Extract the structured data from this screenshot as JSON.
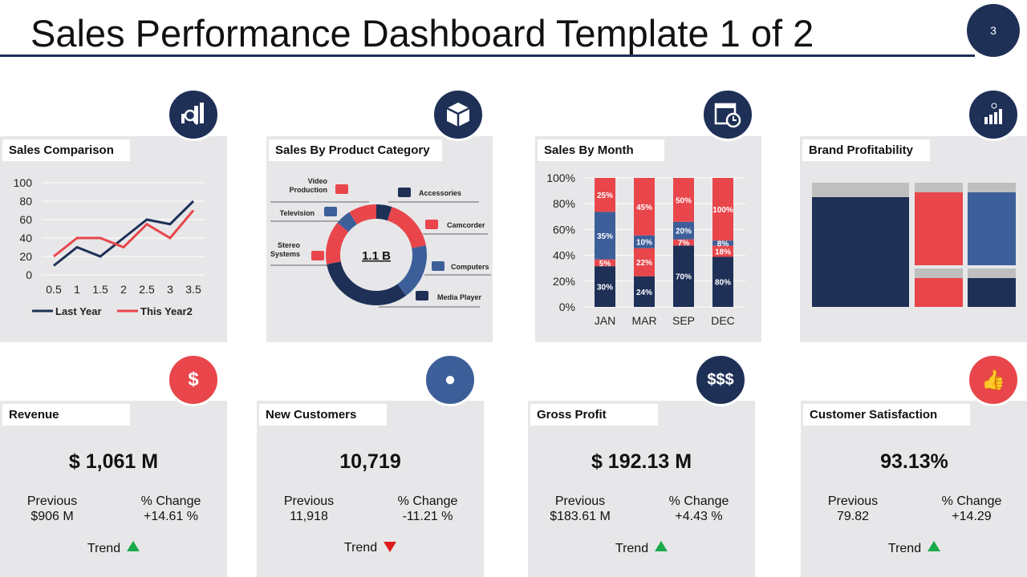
{
  "header": {
    "title": "Sales Performance Dashboard Template 1 of 2",
    "page_number": "3"
  },
  "colors": {
    "navy": "#1f3057",
    "red": "#e8464b",
    "blue": "#3d5f99",
    "panel": "#e7e7e9",
    "gray": "#bfbfbf",
    "up": "#1aaa4a",
    "down": "#e01b1b"
  },
  "panels": {
    "sales_comparison": {
      "title": "Sales Comparison",
      "icon": "chart-search-icon"
    },
    "product_category": {
      "title": "Sales By Product Category",
      "icon": "box-icon"
    },
    "sales_by_month": {
      "title": "Sales By Month",
      "icon": "calendar-clock-icon"
    },
    "brand_profitability": {
      "title": "Brand Profitability",
      "icon": "growth-tag-icon"
    }
  },
  "chart_data": [
    {
      "type": "line",
      "x": [
        0.5,
        1,
        1.5,
        2,
        2.5,
        3,
        3.5
      ],
      "x_ticks": [
        "0.5",
        "1",
        "1.5",
        "2",
        "2.5",
        "3",
        "3.5"
      ],
      "y_ticks": [
        "0",
        "20",
        "40",
        "60",
        "80",
        "100"
      ],
      "ylim": [
        0,
        100
      ],
      "grid": true,
      "legend": "bottom",
      "series": [
        {
          "name": "Last Year",
          "color": "#1f3057",
          "values": [
            10,
            30,
            20,
            40,
            60,
            55,
            80
          ]
        },
        {
          "name": "This Year2",
          "color": "#e8464b",
          "values": [
            20,
            40,
            40,
            30,
            55,
            40,
            70
          ]
        }
      ]
    },
    {
      "type": "pie",
      "donut": true,
      "center_label": "1.1 B",
      "slices": [
        {
          "label": "Accessories",
          "value": 5,
          "color": "#1f3057"
        },
        {
          "label": "Camcorder",
          "value": 17,
          "color": "#e8464b"
        },
        {
          "label": "Computers",
          "value": 18,
          "color": "#3d5f99"
        },
        {
          "label": "Media Player",
          "value": 32,
          "color": "#1f3057"
        },
        {
          "label": "Stereo Systems",
          "value": 14,
          "color": "#e8464b"
        },
        {
          "label": "Television",
          "value": 5,
          "color": "#3d5f99"
        },
        {
          "label": "Video Production",
          "value": 9,
          "color": "#e8464b"
        }
      ]
    },
    {
      "type": "bar",
      "stacked": "percent",
      "categories": [
        "JAN",
        "MAR",
        "SEP",
        "DEC"
      ],
      "y_ticks": [
        "0%",
        "20%",
        "40%",
        "60%",
        "80%",
        "100%"
      ],
      "ylim": [
        0,
        100
      ],
      "grid": true,
      "series": [
        {
          "color": "#1f3057",
          "values": [
            30,
            24,
            70,
            80
          ]
        },
        {
          "color": "#e8464b",
          "values": [
            5,
            22,
            7,
            18
          ]
        },
        {
          "color": "#3d5f99",
          "values": [
            35,
            10,
            20,
            8
          ]
        },
        {
          "color": "#e8464b",
          "values": [
            25,
            45,
            50,
            100
          ]
        }
      ]
    }
  ],
  "kpis": [
    {
      "title": "Revenue",
      "icon": "hand-coin-icon",
      "value": "$ 1,061 M",
      "previous_label": "Previous",
      "previous": "$906 M",
      "change_label": "% Change",
      "change": "+14.61 %",
      "trend_label": "Trend",
      "trend": "up"
    },
    {
      "title": "New Customers",
      "icon": "user-icon",
      "value": "10,719",
      "previous_label": "Previous",
      "previous": "11,918",
      "change_label": "% Change",
      "change": "-11.21 %",
      "trend_label": "Trend",
      "trend": "down"
    },
    {
      "title": "Gross Profit",
      "icon": "dollars-up-icon",
      "value": "$ 192.13 M",
      "previous_label": "Previous",
      "previous": "$183.61 M",
      "change_label": "% Change",
      "change": "+4.43 %",
      "trend_label": "Trend",
      "trend": "up"
    },
    {
      "title": "Customer Satisfaction",
      "icon": "thumbs-up-icon",
      "value": "93.13%",
      "previous_label": "Previous",
      "previous": "79.82",
      "change_label": "% Change",
      "change": "+14.29",
      "trend_label": "Trend",
      "trend": "up"
    }
  ]
}
